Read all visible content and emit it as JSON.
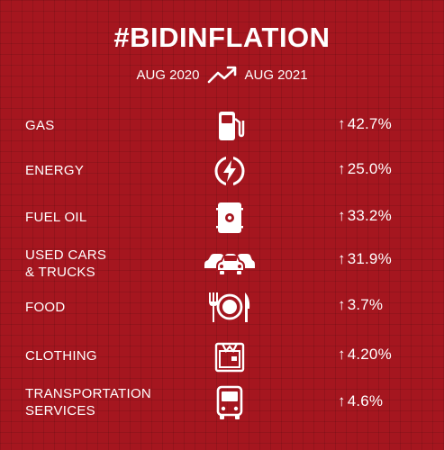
{
  "header": {
    "title": "#BIDINFLATION",
    "from_date": "AUG 2020",
    "to_date": "AUG 2021",
    "trend_icon": "trending-up-icon"
  },
  "items": [
    {
      "label": "GAS",
      "icon": "gas-pump-icon",
      "arrow": "↑",
      "change": "42.7%"
    },
    {
      "label": "ENERGY",
      "icon": "lightning-bolt-icon",
      "arrow": "↑",
      "change": "25.0%"
    },
    {
      "label": "FUEL OIL",
      "icon": "oil-barrel-icon",
      "arrow": "↑",
      "change": "33.2%"
    },
    {
      "label": "USED CARS\n& TRUCKS",
      "icon": "cars-icon",
      "arrow": "↑",
      "change": "31.9%"
    },
    {
      "label": "FOOD",
      "icon": "fork-plate-knife-icon",
      "arrow": "↑",
      "change": "3.7%"
    },
    {
      "label": "CLOTHING",
      "icon": "shirt-box-icon",
      "arrow": "↑",
      "change": "4.20%"
    },
    {
      "label": "TRANSPORTATION\nSERVICES",
      "icon": "bus-icon",
      "arrow": "↑",
      "change": "4.6%"
    }
  ],
  "colors": {
    "background": "#a5161f",
    "text": "#ffffff"
  }
}
